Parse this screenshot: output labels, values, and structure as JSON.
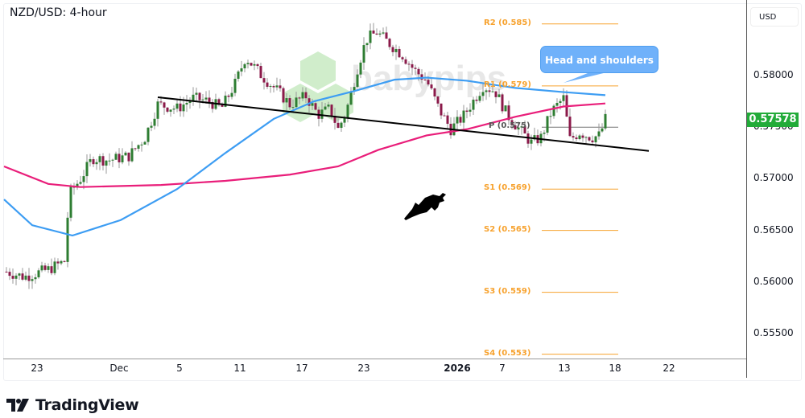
{
  "header": {
    "title": "NZD/USD: 4-hour",
    "currency_button": "USD"
  },
  "price_axis": {
    "ticks": [
      {
        "label": "0.58000",
        "value": 0.58
      },
      {
        "label": "0.57500",
        "value": 0.575
      },
      {
        "label": "0.57000",
        "value": 0.57
      },
      {
        "label": "0.56500",
        "value": 0.565
      },
      {
        "label": "0.56000",
        "value": 0.56
      },
      {
        "label": "0.55500",
        "value": 0.555
      }
    ],
    "last_price": "0.57578",
    "last_price_color": "#22ab39"
  },
  "time_axis": {
    "ticks": [
      {
        "label": "23",
        "x": 46,
        "bold": false
      },
      {
        "label": "Dec",
        "x": 148,
        "bold": false
      },
      {
        "label": "5",
        "x": 223,
        "bold": false
      },
      {
        "label": "11",
        "x": 298,
        "bold": false
      },
      {
        "label": "17",
        "x": 375,
        "bold": false
      },
      {
        "label": "23",
        "x": 452,
        "bold": false
      },
      {
        "label": "2026",
        "x": 568,
        "bold": true
      },
      {
        "label": "7",
        "x": 624,
        "bold": false
      },
      {
        "label": "13",
        "x": 701,
        "bold": false
      },
      {
        "label": "18",
        "x": 764,
        "bold": false
      },
      {
        "label": "22",
        "x": 831,
        "bold": false
      }
    ]
  },
  "annotation": {
    "callout": "Head and shoulders"
  },
  "pivots": [
    {
      "label": "R2 (0.585)",
      "value": 0.585,
      "type": "R"
    },
    {
      "label": "R1 (0.579)",
      "value": 0.579,
      "type": "R"
    },
    {
      "label": "P (0.575)",
      "value": 0.575,
      "type": "P"
    },
    {
      "label": "S1 (0.569)",
      "value": 0.569,
      "type": "S"
    },
    {
      "label": "S2 (0.565)",
      "value": 0.565,
      "type": "S"
    },
    {
      "label": "S3 (0.559)",
      "value": 0.559,
      "type": "S"
    },
    {
      "label": "S4 (0.553)",
      "value": 0.553,
      "type": "S"
    }
  ],
  "colors": {
    "bull": "#2e7d32",
    "bear": "#8b1a4a",
    "wick": "#999999",
    "sma_fast": "#3d9df3",
    "sma_slow": "#e91e7a",
    "neckline": "#000000",
    "pivot": "#f7a22e",
    "pivot_p": "#777777"
  },
  "watermark": "babypips",
  "branding": {
    "name": "TradingView"
  },
  "chart_data": {
    "type": "candlestick",
    "title": "NZD/USD: 4-hour",
    "xlabel": "",
    "ylabel": "USD",
    "ylim": [
      0.5525,
      0.5865
    ],
    "x_ticks": [
      "23",
      "Dec",
      "5",
      "11",
      "17",
      "23",
      "2026",
      "7",
      "13",
      "18",
      "22"
    ],
    "y_ticks": [
      0.555,
      0.56,
      0.565,
      0.57,
      0.575,
      0.58
    ],
    "last_price": 0.57578,
    "close_path": [
      {
        "x": 8,
        "p": 0.561
      },
      {
        "x": 30,
        "p": 0.5605
      },
      {
        "x": 60,
        "p": 0.5612
      },
      {
        "x": 80,
        "p": 0.562
      },
      {
        "x": 86,
        "p": 0.5685
      },
      {
        "x": 100,
        "p": 0.57
      },
      {
        "x": 115,
        "p": 0.572
      },
      {
        "x": 135,
        "p": 0.5718
      },
      {
        "x": 160,
        "p": 0.5722
      },
      {
        "x": 180,
        "p": 0.574
      },
      {
        "x": 196,
        "p": 0.5772
      },
      {
        "x": 220,
        "p": 0.5768
      },
      {
        "x": 240,
        "p": 0.5778
      },
      {
        "x": 260,
        "p": 0.5775
      },
      {
        "x": 275,
        "p": 0.5768
      },
      {
        "x": 292,
        "p": 0.5792
      },
      {
        "x": 305,
        "p": 0.5818
      },
      {
        "x": 325,
        "p": 0.58
      },
      {
        "x": 345,
        "p": 0.5785
      },
      {
        "x": 360,
        "p": 0.5772
      },
      {
        "x": 380,
        "p": 0.578
      },
      {
        "x": 395,
        "p": 0.5762
      },
      {
        "x": 410,
        "p": 0.5768
      },
      {
        "x": 420,
        "p": 0.5748
      },
      {
        "x": 430,
        "p": 0.5765
      },
      {
        "x": 445,
        "p": 0.581
      },
      {
        "x": 455,
        "p": 0.5835
      },
      {
        "x": 468,
        "p": 0.5842
      },
      {
        "x": 485,
        "p": 0.583
      },
      {
        "x": 500,
        "p": 0.582
      },
      {
        "x": 515,
        "p": 0.5805
      },
      {
        "x": 530,
        "p": 0.5795
      },
      {
        "x": 545,
        "p": 0.5768
      },
      {
        "x": 560,
        "p": 0.5748
      },
      {
        "x": 575,
        "p": 0.576
      },
      {
        "x": 590,
        "p": 0.5778
      },
      {
        "x": 600,
        "p": 0.579
      },
      {
        "x": 615,
        "p": 0.5785
      },
      {
        "x": 630,
        "p": 0.5762
      },
      {
        "x": 645,
        "p": 0.5748
      },
      {
        "x": 660,
        "p": 0.5735
      },
      {
        "x": 672,
        "p": 0.574
      },
      {
        "x": 685,
        "p": 0.5765
      },
      {
        "x": 700,
        "p": 0.5778
      },
      {
        "x": 708,
        "p": 0.5738
      },
      {
        "x": 720,
        "p": 0.5745
      },
      {
        "x": 735,
        "p": 0.574
      },
      {
        "x": 745,
        "p": 0.5742
      },
      {
        "x": 752,
        "p": 0.57578
      }
    ],
    "series": [
      {
        "name": "SMA fast (blue)",
        "points": [
          [
            5,
            0.568
          ],
          [
            40,
            0.5655
          ],
          [
            90,
            0.5645
          ],
          [
            150,
            0.566
          ],
          [
            220,
            0.569
          ],
          [
            280,
            0.5725
          ],
          [
            340,
            0.5758
          ],
          [
            390,
            0.5775
          ],
          [
            440,
            0.5785
          ],
          [
            490,
            0.5796
          ],
          [
            530,
            0.5798
          ],
          [
            580,
            0.5795
          ],
          [
            640,
            0.5788
          ],
          [
            700,
            0.5784
          ],
          [
            752,
            0.5781
          ]
        ]
      },
      {
        "name": "SMA slow (magenta)",
        "points": [
          [
            5,
            0.5712
          ],
          [
            60,
            0.5695
          ],
          [
            100,
            0.5692
          ],
          [
            200,
            0.5694
          ],
          [
            280,
            0.5698
          ],
          [
            360,
            0.5704
          ],
          [
            420,
            0.5712
          ],
          [
            470,
            0.5728
          ],
          [
            530,
            0.5742
          ],
          [
            580,
            0.5748
          ],
          [
            640,
            0.576
          ],
          [
            700,
            0.577
          ],
          [
            752,
            0.5773
          ]
        ]
      },
      {
        "name": "Neckline",
        "points": [
          [
            196,
            0.5779
          ],
          [
            806,
            0.5727
          ]
        ]
      }
    ],
    "horizontal_levels": [
      {
        "name": "R2",
        "value": 0.585
      },
      {
        "name": "R1",
        "value": 0.579
      },
      {
        "name": "P",
        "value": 0.575
      },
      {
        "name": "S1",
        "value": 0.569
      },
      {
        "name": "S2",
        "value": 0.565
      },
      {
        "name": "S3",
        "value": 0.559
      },
      {
        "name": "S4",
        "value": 0.553
      }
    ],
    "annotations": [
      "Head and shoulders",
      "bull icon",
      "babypips watermark"
    ],
    "grid": false,
    "legend": "none"
  }
}
